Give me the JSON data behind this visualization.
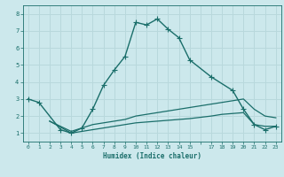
{
  "xlabel": "Humidex (Indice chaleur)",
  "ylabel": "",
  "background_color": "#cce8ec",
  "grid_color": "#b8d8dc",
  "line_color": "#1a6e6a",
  "xlim": [
    -0.5,
    23.5
  ],
  "ylim": [
    0.5,
    8.5
  ],
  "xticks": [
    0,
    1,
    2,
    3,
    4,
    5,
    6,
    7,
    8,
    9,
    10,
    11,
    12,
    13,
    14,
    15,
    16,
    17,
    18,
    19,
    20,
    21,
    22,
    23
  ],
  "xtick_labels": [
    "0",
    "1",
    "2",
    "3",
    "4",
    "5",
    "6",
    "7",
    "8",
    "9",
    "10",
    "11",
    "12",
    "13",
    "14",
    "15",
    "",
    "17",
    "18",
    "19",
    "20",
    "21",
    "22",
    "23"
  ],
  "yticks": [
    1,
    2,
    3,
    4,
    5,
    6,
    7,
    8
  ],
  "series": [
    {
      "x": [
        0,
        1,
        3,
        4,
        5,
        6,
        7,
        8,
        9,
        10,
        11,
        12,
        13,
        14,
        15,
        17,
        19,
        20,
        21,
        22,
        23
      ],
      "y": [
        3.0,
        2.8,
        1.2,
        1.0,
        1.3,
        2.4,
        3.8,
        4.7,
        5.5,
        7.5,
        7.35,
        7.7,
        7.1,
        6.6,
        5.3,
        4.3,
        3.5,
        2.4,
        1.5,
        1.2,
        1.4
      ],
      "gaps_after": [],
      "marker": "+",
      "markersize": 4,
      "linestyle": "-",
      "linewidth": 1.0
    },
    {
      "x": [
        2,
        4,
        5,
        6,
        7,
        8,
        9,
        10,
        11,
        12,
        13,
        14,
        15,
        17,
        18,
        19,
        20,
        21,
        22,
        23
      ],
      "y": [
        1.7,
        1.1,
        1.3,
        1.5,
        1.6,
        1.7,
        1.8,
        2.0,
        2.1,
        2.2,
        2.3,
        2.4,
        2.5,
        2.7,
        2.8,
        2.9,
        3.0,
        2.4,
        2.0,
        1.9
      ],
      "marker": null,
      "markersize": 3,
      "linestyle": "-",
      "linewidth": 0.9
    },
    {
      "x": [
        2,
        4,
        5,
        6,
        7,
        8,
        9,
        10,
        11,
        12,
        13,
        14,
        15,
        17,
        18,
        19,
        20,
        21,
        22,
        23
      ],
      "y": [
        1.7,
        1.0,
        1.1,
        1.2,
        1.3,
        1.4,
        1.5,
        1.6,
        1.65,
        1.7,
        1.75,
        1.8,
        1.85,
        2.0,
        2.1,
        2.15,
        2.2,
        1.5,
        1.4,
        1.4
      ],
      "marker": null,
      "markersize": 3,
      "linestyle": "-",
      "linewidth": 0.9
    }
  ]
}
